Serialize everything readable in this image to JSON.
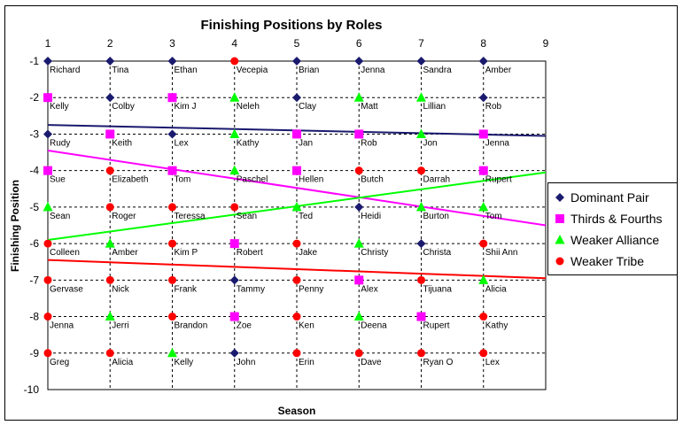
{
  "chart_data": {
    "type": "scatter",
    "title": "Finishing Positions by Roles",
    "xlabel": "Season",
    "ylabel": "Finishing Position",
    "xlim": [
      1,
      9
    ],
    "ylim": [
      -10,
      -1
    ],
    "x_ticks": [
      "1",
      "2",
      "3",
      "4",
      "5",
      "6",
      "7",
      "8",
      "9"
    ],
    "y_ticks": [
      "-1",
      "-2",
      "-3",
      "-4",
      "-5",
      "-6",
      "-7",
      "-8",
      "-9",
      "-10"
    ],
    "grid": true,
    "legend_position": "right",
    "series": [
      {
        "name": "Dominant Pair",
        "color": "#1a1a6e",
        "marker": "diamond",
        "points": [
          {
            "x": 1,
            "y": -1,
            "label": "Richard"
          },
          {
            "x": 2,
            "y": -1,
            "label": "Tina"
          },
          {
            "x": 3,
            "y": -1,
            "label": "Ethan"
          },
          {
            "x": 5,
            "y": -1,
            "label": "Brian"
          },
          {
            "x": 6,
            "y": -1,
            "label": "Jenna"
          },
          {
            "x": 7,
            "y": -1,
            "label": "Sandra"
          },
          {
            "x": 8,
            "y": -1,
            "label": "Amber"
          },
          {
            "x": 2,
            "y": -2,
            "label": "Colby"
          },
          {
            "x": 5,
            "y": -2,
            "label": "Clay"
          },
          {
            "x": 8,
            "y": -2,
            "label": "Rob"
          },
          {
            "x": 1,
            "y": -3,
            "label": "Rudy"
          },
          {
            "x": 3,
            "y": -3,
            "label": "Lex"
          },
          {
            "x": 6,
            "y": -5,
            "label": "Heidi"
          },
          {
            "x": 7,
            "y": -6,
            "label": "Christa"
          },
          {
            "x": 4,
            "y": -7,
            "label": "Tammy"
          },
          {
            "x": 4,
            "y": -9,
            "label": "John"
          }
        ],
        "trend": [
          [
            1,
            -2.75
          ],
          [
            9,
            -3.05
          ]
        ]
      },
      {
        "name": "Thirds & Fourths",
        "color": "#ff00ff",
        "marker": "square",
        "points": [
          {
            "x": 1,
            "y": -2,
            "label": "Kelly"
          },
          {
            "x": 3,
            "y": -2,
            "label": "Kim J"
          },
          {
            "x": 2,
            "y": -3,
            "label": "Keith"
          },
          {
            "x": 5,
            "y": -3,
            "label": "Jan"
          },
          {
            "x": 6,
            "y": -3,
            "label": "Rob"
          },
          {
            "x": 8,
            "y": -3,
            "label": "Jenna"
          },
          {
            "x": 1,
            "y": -4,
            "label": "Sue"
          },
          {
            "x": 3,
            "y": -4,
            "label": "Tom"
          },
          {
            "x": 5,
            "y": -4,
            "label": "Hellen"
          },
          {
            "x": 8,
            "y": -4,
            "label": "Rupert"
          },
          {
            "x": 4,
            "y": -6,
            "label": "Robert"
          },
          {
            "x": 6,
            "y": -7,
            "label": "Alex"
          },
          {
            "x": 4,
            "y": -8,
            "label": "Zoe"
          },
          {
            "x": 7,
            "y": -8,
            "label": "Rupert"
          }
        ],
        "trend": [
          [
            1,
            -3.45
          ],
          [
            9,
            -5.5
          ]
        ]
      },
      {
        "name": "Weaker Alliance",
        "color": "#00ff00",
        "marker": "triangle",
        "points": [
          {
            "x": 4,
            "y": -2,
            "label": "Neleh"
          },
          {
            "x": 6,
            "y": -2,
            "label": "Matt"
          },
          {
            "x": 7,
            "y": -2,
            "label": "Lillian"
          },
          {
            "x": 4,
            "y": -3,
            "label": "Kathy"
          },
          {
            "x": 7,
            "y": -3,
            "label": "Jon"
          },
          {
            "x": 4,
            "y": -4,
            "label": "Paschel"
          },
          {
            "x": 1,
            "y": -5,
            "label": "Sean"
          },
          {
            "x": 5,
            "y": -5,
            "label": "Ted"
          },
          {
            "x": 7,
            "y": -5,
            "label": "Burton"
          },
          {
            "x": 8,
            "y": -5,
            "label": "Tom"
          },
          {
            "x": 2,
            "y": -6,
            "label": "Amber"
          },
          {
            "x": 6,
            "y": -6,
            "label": "Christy"
          },
          {
            "x": 8,
            "y": -7,
            "label": "Alicia"
          },
          {
            "x": 2,
            "y": -8,
            "label": "Jerri"
          },
          {
            "x": 6,
            "y": -8,
            "label": "Deena"
          },
          {
            "x": 3,
            "y": -9,
            "label": "Kelly"
          }
        ],
        "trend": [
          [
            1,
            -5.9
          ],
          [
            9,
            -4.05
          ]
        ]
      },
      {
        "name": "Weaker Tribe",
        "color": "#ff0000",
        "marker": "circle",
        "points": [
          {
            "x": 4,
            "y": -1,
            "label": "Vecepia"
          },
          {
            "x": 2,
            "y": -4,
            "label": "Elizabeth"
          },
          {
            "x": 6,
            "y": -4,
            "label": "Butch"
          },
          {
            "x": 7,
            "y": -4,
            "label": "Darrah"
          },
          {
            "x": 2,
            "y": -5,
            "label": "Roger"
          },
          {
            "x": 3,
            "y": -5,
            "label": "Teressa"
          },
          {
            "x": 4,
            "y": -5,
            "label": "Sean"
          },
          {
            "x": 1,
            "y": -6,
            "label": "Colleen"
          },
          {
            "x": 3,
            "y": -6,
            "label": "Kim P"
          },
          {
            "x": 5,
            "y": -6,
            "label": "Jake"
          },
          {
            "x": 8,
            "y": -6,
            "label": "Shii Ann"
          },
          {
            "x": 1,
            "y": -7,
            "label": "Gervase"
          },
          {
            "x": 2,
            "y": -7,
            "label": "Nick"
          },
          {
            "x": 3,
            "y": -7,
            "label": "Frank"
          },
          {
            "x": 5,
            "y": -7,
            "label": "Penny"
          },
          {
            "x": 7,
            "y": -7,
            "label": "Tijuana"
          },
          {
            "x": 1,
            "y": -8,
            "label": "Jenna"
          },
          {
            "x": 3,
            "y": -8,
            "label": "Brandon"
          },
          {
            "x": 5,
            "y": -8,
            "label": "Ken"
          },
          {
            "x": 8,
            "y": -8,
            "label": "Kathy"
          },
          {
            "x": 1,
            "y": -9,
            "label": "Greg"
          },
          {
            "x": 2,
            "y": -9,
            "label": "Alicia"
          },
          {
            "x": 5,
            "y": -9,
            "label": "Erin"
          },
          {
            "x": 6,
            "y": -9,
            "label": "Dave"
          },
          {
            "x": 7,
            "y": -9,
            "label": "Ryan O"
          },
          {
            "x": 8,
            "y": -9,
            "label": "Lex"
          }
        ],
        "trend": [
          [
            1,
            -6.45
          ],
          [
            9,
            -6.95
          ]
        ]
      }
    ]
  }
}
